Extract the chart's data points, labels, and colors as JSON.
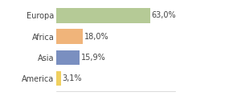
{
  "categories": [
    "Europa",
    "Africa",
    "Asia",
    "America"
  ],
  "values": [
    63.0,
    18.0,
    15.9,
    3.1
  ],
  "labels": [
    "63,0%",
    "18,0%",
    "15,9%",
    "3,1%"
  ],
  "bar_colors": [
    "#b5ca96",
    "#f0b47a",
    "#7a8fc0",
    "#f0d060"
  ],
  "background_color": "#ffffff",
  "xlim": [
    0,
    80
  ],
  "label_fontsize": 7,
  "tick_fontsize": 7,
  "bar_height": 0.7
}
